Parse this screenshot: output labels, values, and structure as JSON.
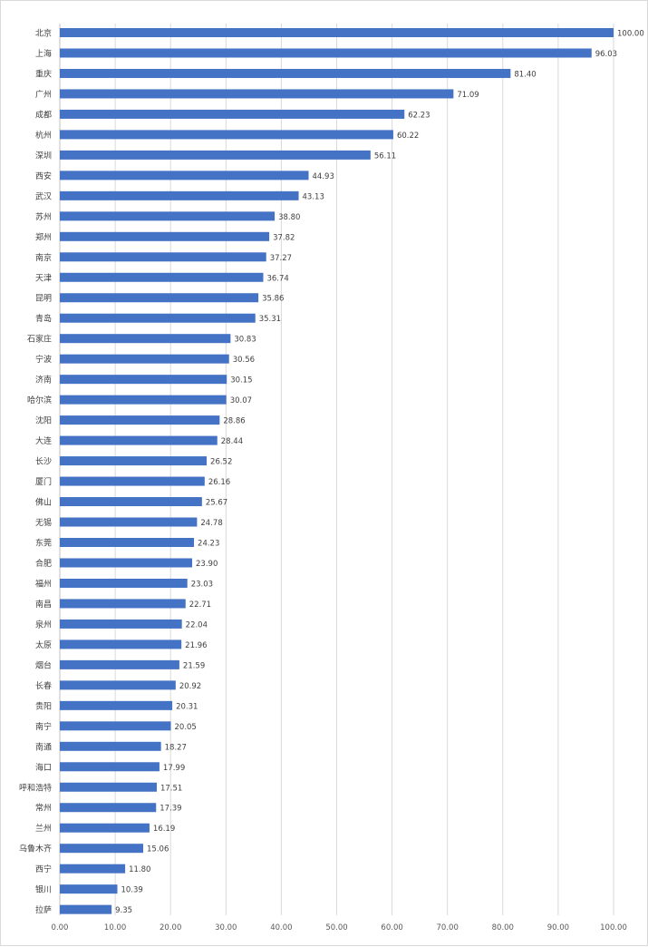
{
  "chart_data": {
    "type": "bar",
    "orientation": "horizontal",
    "categories": [
      "北京",
      "上海",
      "重庆",
      "广州",
      "成都",
      "杭州",
      "深圳",
      "西安",
      "武汉",
      "苏州",
      "郑州",
      "南京",
      "天津",
      "昆明",
      "青岛",
      "石家庄",
      "宁波",
      "济南",
      "哈尔滨",
      "沈阳",
      "大连",
      "长沙",
      "厦门",
      "佛山",
      "无锡",
      "东莞",
      "合肥",
      "福州",
      "南昌",
      "泉州",
      "太原",
      "烟台",
      "长春",
      "贵阳",
      "南宁",
      "南通",
      "海口",
      "呼和浩特",
      "常州",
      "兰州",
      "乌鲁木齐",
      "西宁",
      "银川",
      "拉萨"
    ],
    "values": [
      100.0,
      96.03,
      81.4,
      71.09,
      62.23,
      60.22,
      56.11,
      44.93,
      43.13,
      38.8,
      37.82,
      37.27,
      36.74,
      35.86,
      35.31,
      30.83,
      30.56,
      30.15,
      30.07,
      28.86,
      28.44,
      26.52,
      26.16,
      25.67,
      24.78,
      24.23,
      23.9,
      23.03,
      22.71,
      22.04,
      21.96,
      21.59,
      20.92,
      20.31,
      20.05,
      18.27,
      17.99,
      17.51,
      17.39,
      16.19,
      15.06,
      11.8,
      10.39,
      9.35
    ],
    "value_labels": [
      "100.00",
      "96.03",
      "81.40",
      "71.09",
      "62.23",
      "60.22",
      "56.11",
      "44.93",
      "43.13",
      "38.80",
      "37.82",
      "37.27",
      "36.74",
      "35.86",
      "35.31",
      "30.83",
      "30.56",
      "30.15",
      "30.07",
      "28.86",
      "28.44",
      "26.52",
      "26.16",
      "25.67",
      "24.78",
      "24.23",
      "23.90",
      "23.03",
      "22.71",
      "22.04",
      "21.96",
      "21.59",
      "20.92",
      "20.31",
      "20.05",
      "18.27",
      "17.99",
      "17.51",
      "17.39",
      "16.19",
      "15.06",
      "11.80",
      "10.39",
      "9.35"
    ],
    "xlim": [
      0,
      100
    ],
    "x_ticks": [
      0,
      10,
      20,
      30,
      40,
      50,
      60,
      70,
      80,
      90,
      100
    ],
    "x_tick_labels": [
      "0.00",
      "10.00",
      "20.00",
      "30.00",
      "40.00",
      "50.00",
      "60.00",
      "70.00",
      "80.00",
      "90.00",
      "100.00"
    ],
    "grid": true,
    "legend": "none",
    "title": "",
    "xlabel": "",
    "ylabel": "",
    "bar_color": "#4472C4",
    "grid_color": "#d9d9d9",
    "axis_color": "#bfbfbf"
  }
}
